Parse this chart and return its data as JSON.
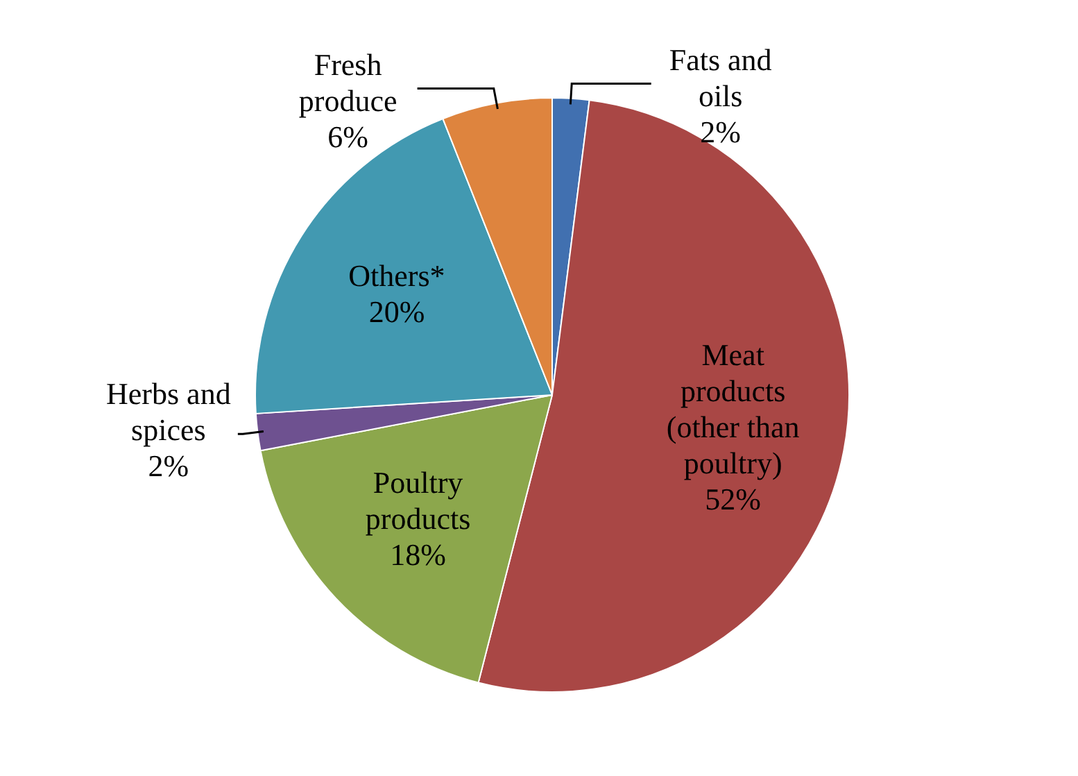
{
  "chart_data": {
    "type": "pie",
    "categories": [
      "Fats and oils",
      "Meat products (other than poultry)",
      "Poultry products",
      "Herbs and spices",
      "Others*",
      "Fresh produce"
    ],
    "values": [
      2,
      52,
      18,
      2,
      20,
      6
    ],
    "colors": [
      "#4170b0",
      "#a94745",
      "#8ca74c",
      "#6e5190",
      "#4299b1",
      "#de843e"
    ],
    "value_labels": [
      "2%",
      "52%",
      "18%",
      "2%",
      "20%",
      "6%"
    ],
    "legend": false
  }
}
